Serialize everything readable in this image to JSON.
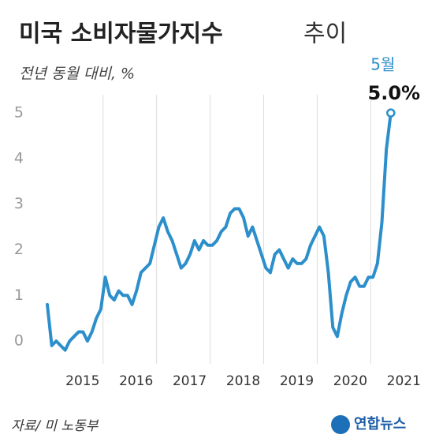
{
  "chart_data": {
    "type": "line",
    "title": [
      "미국 소비자물가지수",
      "추이"
    ],
    "subtitle": "전년 동월 대비, %",
    "annotation": {
      "label": "5월",
      "value_label": "5.0%"
    },
    "source": "자료/ 미 노동부",
    "logo": "연합뉴스",
    "categories": [
      null,
      null,
      null,
      null,
      null,
      null,
      null,
      null,
      null,
      null,
      null,
      null,
      null,
      null,
      null,
      null,
      null,
      null,
      null,
      null,
      null,
      null,
      null,
      null,
      null,
      null,
      null,
      null,
      null,
      null,
      null,
      null,
      null,
      null,
      null,
      null,
      null,
      null,
      null,
      null,
      null,
      null,
      null,
      null,
      null,
      null,
      null,
      null,
      null,
      null,
      null,
      null,
      null,
      null,
      null,
      null,
      null,
      null,
      null,
      null,
      null,
      null,
      null,
      null,
      null,
      null,
      null,
      null,
      null,
      null,
      null,
      null,
      null,
      null,
      null,
      null,
      null,
      null
    ],
    "year_labels": [
      "2015",
      "2016",
      "2017",
      "2018",
      "2019",
      "2020",
      "2021"
    ],
    "series": [
      {
        "color": "#2c8fcb",
        "values": [
          0.8,
          -0.1,
          0.0,
          -0.1,
          -0.2,
          0.0,
          0.1,
          0.2,
          0.2,
          0.0,
          0.2,
          0.5,
          0.7,
          1.4,
          1.0,
          0.9,
          1.1,
          1.0,
          1.0,
          0.8,
          1.1,
          1.5,
          1.6,
          1.7,
          2.1,
          2.5,
          2.7,
          2.4,
          2.2,
          1.9,
          1.6,
          1.7,
          1.9,
          2.2,
          2.0,
          2.2,
          2.1,
          2.1,
          2.2,
          2.4,
          2.5,
          2.8,
          2.9,
          2.9,
          2.7,
          2.3,
          2.5,
          2.2,
          1.9,
          1.6,
          1.5,
          1.9,
          2.0,
          1.8,
          1.6,
          1.8,
          1.7,
          1.7,
          1.8,
          2.1,
          2.3,
          2.5,
          2.3,
          1.5,
          0.3,
          0.1,
          0.6,
          1.0,
          1.3,
          1.4,
          1.2,
          1.2,
          1.4,
          1.4,
          1.7,
          2.6,
          4.2,
          5.0
        ]
      }
    ],
    "ylim": [
      -0.5,
      5.4
    ],
    "yticks": [
      0,
      1,
      2,
      3,
      4,
      5
    ],
    "grid": false
  }
}
